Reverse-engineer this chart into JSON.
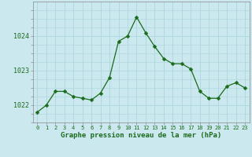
{
  "hours": [
    0,
    1,
    2,
    3,
    4,
    5,
    6,
    7,
    8,
    9,
    10,
    11,
    12,
    13,
    14,
    15,
    16,
    17,
    18,
    19,
    20,
    21,
    22,
    23
  ],
  "pressure": [
    1021.8,
    1022.0,
    1022.4,
    1022.4,
    1022.25,
    1022.2,
    1022.15,
    1022.35,
    1022.8,
    1023.85,
    1024.0,
    1024.55,
    1024.1,
    1023.7,
    1023.35,
    1023.2,
    1023.2,
    1023.05,
    1022.4,
    1022.2,
    1022.2,
    1022.55,
    1022.65,
    1022.5
  ],
  "line_color": "#1a6b1a",
  "marker": "D",
  "markersize": 2.5,
  "bg_color": "#cce8ef",
  "plot_bg": "#cce8ef",
  "grid_color": "#b0d8e0",
  "xlabel": "Graphe pression niveau de la mer (hPa)",
  "xlabel_color": "#1a6b1a",
  "tick_color": "#1a6b1a",
  "yticks": [
    1022,
    1023,
    1024
  ],
  "ylim": [
    1021.5,
    1025.0
  ],
  "xlim": [
    -0.5,
    23.5
  ],
  "xtick_labels": [
    "0",
    "1",
    "2",
    "3",
    "4",
    "5",
    "6",
    "7",
    "8",
    "9",
    "10",
    "11",
    "12",
    "13",
    "14",
    "15",
    "16",
    "17",
    "18",
    "19",
    "20",
    "21",
    "22",
    "23"
  ]
}
